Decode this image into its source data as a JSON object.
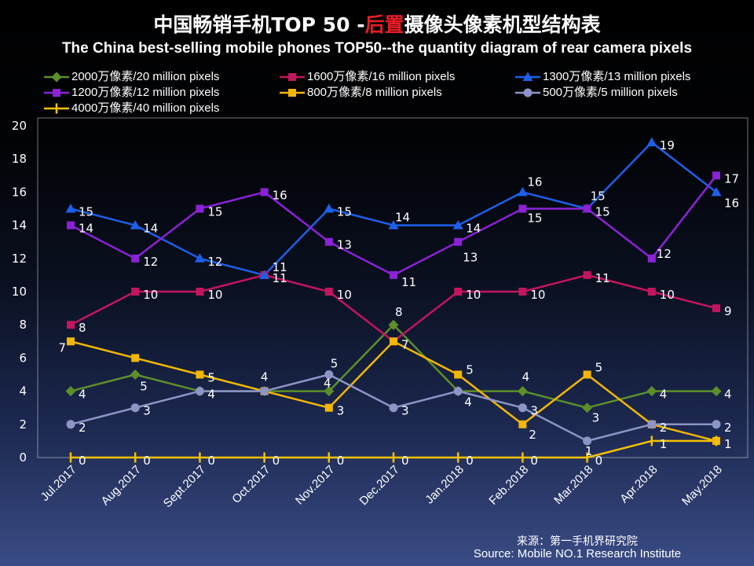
{
  "chart_data": {
    "type": "line",
    "title_parts": [
      {
        "text": "中国畅销手机TOP 50 -",
        "color": "#ffffff"
      },
      {
        "text": "后置",
        "color": "#ea1c24"
      },
      {
        "text": "摄像头像素机型结构表",
        "color": "#ffffff"
      }
    ],
    "subtitle": "The China best-selling mobile phones TOP50--the quantity diagram of rear camera pixels",
    "xlabel": "",
    "ylabel": "",
    "categories": [
      "Jul.2017",
      "Aug.2017",
      "Sept.2017",
      "Oct.2017",
      "Nov.2017",
      "Dec.2017",
      "Jan.2018",
      "Feb.2018",
      "Mar.2018",
      "Apr.2018",
      "May.2018"
    ],
    "ylim": [
      0,
      20
    ],
    "yticks": [
      0,
      2,
      4,
      6,
      8,
      10,
      12,
      14,
      16,
      18,
      20
    ],
    "grid": false,
    "legend_position": "top",
    "series": [
      {
        "name": "2000万像素/20 million pixels",
        "color": "#5c8f2a",
        "marker": "diamond",
        "values": [
          4,
          5,
          4,
          4,
          4,
          8,
          4,
          4,
          3,
          4,
          4
        ],
        "labels": [
          "4",
          "5",
          "4",
          "4",
          "4",
          "8",
          "4",
          "4",
          "3",
          "4",
          "4"
        ]
      },
      {
        "name": "1600万像素/16 million pixels",
        "color": "#c3155f",
        "marker": "square",
        "values": [
          8,
          10,
          10,
          11,
          10,
          7,
          10,
          10,
          11,
          10,
          9
        ],
        "labels": [
          "8",
          "10",
          "10",
          "11",
          "10",
          "7",
          "10",
          "10",
          "11",
          "10",
          "9"
        ]
      },
      {
        "name": "1300万像素/13 million pixels",
        "color": "#1e5fea",
        "marker": "triangle",
        "values": [
          15,
          14,
          12,
          11,
          15,
          14,
          14,
          16,
          15,
          19,
          16
        ],
        "labels": [
          "15",
          "14",
          "12",
          "11",
          "15",
          "14",
          "14",
          "16",
          "15",
          "19",
          "16"
        ]
      },
      {
        "name": "1200万像素/12 million pixels",
        "color": "#8b22d6",
        "marker": "square",
        "values": [
          14,
          12,
          15,
          16,
          13,
          11,
          13,
          15,
          15,
          12,
          17
        ],
        "labels": [
          "14",
          "12",
          "15",
          "16",
          "13",
          "11",
          "13",
          "15",
          "15",
          "12",
          "17"
        ]
      },
      {
        "name": "800万像素/8 million pixels",
        "color": "#f2b705",
        "marker": "square",
        "values": [
          7,
          6,
          5,
          4,
          3,
          7,
          5,
          2,
          5,
          2,
          1
        ],
        "labels": [
          "7",
          null,
          "5",
          null,
          "3",
          null,
          "5",
          "2",
          "5",
          null,
          null
        ]
      },
      {
        "name": "500万像素/5 million pixels",
        "color": "#8d95c7",
        "marker": "circle",
        "values": [
          2,
          3,
          4,
          4,
          5,
          3,
          4,
          3,
          1,
          2,
          2
        ],
        "labels": [
          "2",
          "3",
          null,
          null,
          "5",
          "3",
          null,
          "3",
          "1",
          "2",
          "2"
        ]
      },
      {
        "name": "4000万像素/40 million pixels",
        "color": "#f5c200",
        "marker": "plus",
        "values": [
          0,
          0,
          0,
          0,
          0,
          0,
          0,
          0,
          0,
          1,
          1
        ],
        "labels": [
          "0",
          "0",
          "0",
          "0",
          "0",
          "0",
          "0",
          "0",
          "0",
          "1",
          "1"
        ]
      }
    ],
    "source": {
      "cn": "来源：第一手机界研究院",
      "en": "Source: Mobile NO.1 Research Institute"
    }
  }
}
